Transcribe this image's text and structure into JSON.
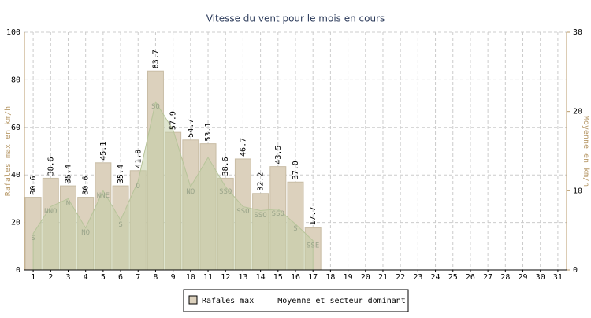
{
  "chart_data": {
    "type": "bar",
    "title": "Vitesse du vent pour le mois en cours",
    "y_label": "Rafales max en km/h",
    "y2_label": "Moyenne en km/h",
    "categories": [
      1,
      2,
      3,
      4,
      5,
      6,
      7,
      8,
      9,
      10,
      11,
      12,
      13,
      14,
      15,
      16,
      17,
      18,
      19,
      20,
      21,
      22,
      23,
      24,
      25,
      26,
      27,
      28,
      29,
      30,
      31
    ],
    "series": [
      {
        "name": "Rafales max",
        "color": "#dcd1bd",
        "values": [
          30.6,
          38.6,
          35.4,
          30.6,
          45.1,
          35.4,
          41.8,
          83.7,
          57.9,
          54.7,
          53.1,
          38.6,
          46.7,
          32.2,
          43.5,
          37.0,
          17.7,
          null,
          null,
          null,
          null,
          null,
          null,
          null,
          null,
          null,
          null,
          null,
          null,
          null,
          null
        ],
        "value_labels": [
          "30.6",
          "38.6",
          "35.4",
          "30.6",
          "45.1",
          "35.4",
          "41.8",
          "83.7",
          "57.9",
          "54.7",
          "53.1",
          "38.6",
          "46.7",
          "32.2",
          "43.5",
          "37.0",
          "17.7",
          null,
          null,
          null,
          null,
          null,
          null,
          null,
          null,
          null,
          null,
          null,
          null,
          null,
          null
        ]
      },
      {
        "name": "Moyenne et secteur dominant",
        "type": "area",
        "axis": "y2",
        "color": "#c3cea6",
        "values": [
          4.6,
          8.0,
          9.0,
          5.3,
          10.0,
          6.3,
          11.2,
          21.2,
          17.7,
          10.5,
          14.2,
          10.5,
          8.0,
          7.5,
          7.7,
          5.8,
          3.7,
          null,
          null,
          null,
          null,
          null,
          null,
          null,
          null,
          null,
          null,
          null,
          null,
          null,
          null
        ],
        "sectors": [
          "S",
          "NNO",
          "N",
          "NO",
          "NNE",
          "S",
          "O",
          "SO",
          null,
          "NO",
          null,
          "SSO",
          "SSO",
          "SSO",
          "SSO",
          "S",
          "SSE",
          null,
          null,
          null,
          null,
          null,
          null,
          null,
          null,
          null,
          null,
          null,
          null,
          null,
          null
        ]
      }
    ],
    "ylim": [
      0,
      100
    ],
    "yticks": [
      0,
      20,
      40,
      60,
      80,
      100
    ],
    "y2lim": [
      0,
      30
    ],
    "y2ticks": [
      0,
      10,
      20,
      30
    ],
    "grid": true
  }
}
